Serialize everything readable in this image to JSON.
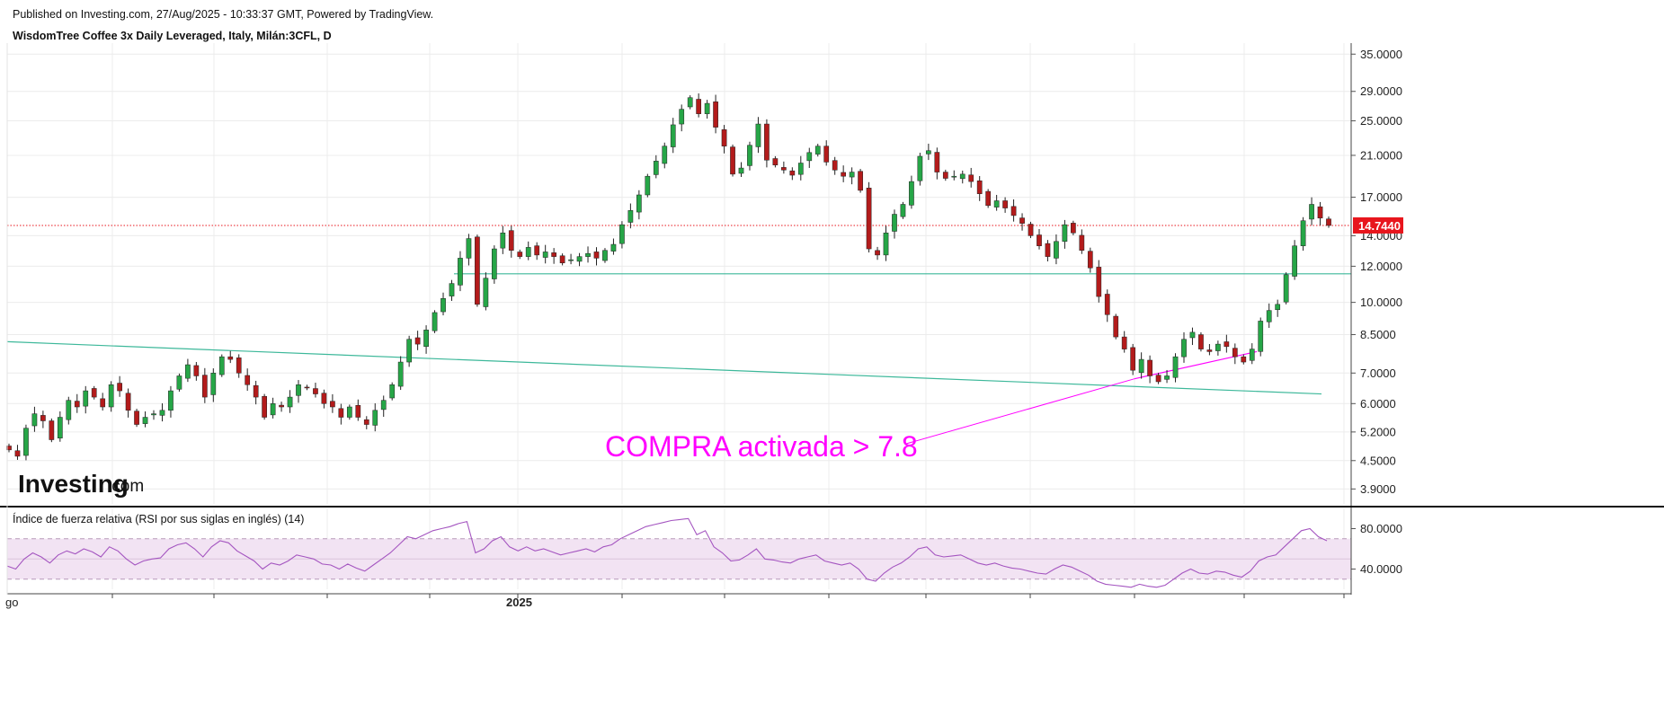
{
  "header": {
    "published": "Published on Investing.com, 27/Aug/2025 - 10:33:37 GMT, Powered by TradingView.",
    "symbol": "WisdomTree Coffee 3x Daily Leveraged, Italy, Milán:3CFL, D"
  },
  "logo": {
    "main": "Investing",
    "suffix": ".com"
  },
  "annotation": {
    "text": "COMPRA activada > 7.8"
  },
  "rsi": {
    "title": "Índice de fuerza relativa (RSI por sus siglas en inglés) (14)",
    "tick_labels": [
      "80.0000",
      "40.0000"
    ]
  },
  "x_axis_labels": [
    "go",
    "2025"
  ],
  "colors": {
    "up": "#26a647",
    "down": "#b31b1b",
    "rsi": "#a455c0",
    "rsi_band": "#f2e3f3",
    "trendline": "#3db89a",
    "annotation": "#ff00ff",
    "last_price": "#e8161d"
  },
  "chart_data": {
    "type": "candlestick",
    "title": "WisdomTree Coffee 3x Daily Leveraged, Italy, Milán:3CFL, D",
    "scale": "log",
    "ylim": [
      3.6,
      37
    ],
    "y_tick_labels": [
      "35.0000",
      "29.0000",
      "25.0000",
      "21.0000",
      "17.0000",
      "14.0000",
      "12.0000",
      "10.0000",
      "8.5000",
      "7.0000",
      "6.0000",
      "5.2000",
      "4.5000",
      "3.9000"
    ],
    "last_price": {
      "value": 14.744,
      "label": "14.7440"
    },
    "closes": [
      4.75,
      4.6,
      5.3,
      5.7,
      5.5,
      5.0,
      5.6,
      6.1,
      5.9,
      6.4,
      6.2,
      5.9,
      6.6,
      6.4,
      5.8,
      5.4,
      5.6,
      5.7,
      5.8,
      6.4,
      6.9,
      7.3,
      6.9,
      6.2,
      7.0,
      7.6,
      7.5,
      7.0,
      6.6,
      6.2,
      5.6,
      6.0,
      5.9,
      6.2,
      6.6,
      6.5,
      6.3,
      6.0,
      5.9,
      5.6,
      5.9,
      5.6,
      5.4,
      5.8,
      6.1,
      6.6,
      7.4,
      8.3,
      8.1,
      8.7,
      9.5,
      10.2,
      11.0,
      12.5,
      13.8,
      9.9,
      11.3,
      13.1,
      14.2,
      13.0,
      12.6,
      13.2,
      12.7,
      12.9,
      12.6,
      12.2,
      12.4,
      12.6,
      12.8,
      12.5,
      13.0,
      13.4,
      14.8,
      15.9,
      17.2,
      18.9,
      20.4,
      22.0,
      24.5,
      26.5,
      28.1,
      25.9,
      27.3,
      24.2,
      22.0,
      19.1,
      19.7,
      22.1,
      24.6,
      20.5,
      20.0,
      19.5,
      19.0,
      20.2,
      21.3,
      22.0,
      20.3,
      19.5,
      18.9,
      19.3,
      17.6,
      13.1,
      12.7,
      14.2,
      15.6,
      16.4,
      18.4,
      20.9,
      21.5,
      19.3,
      18.7,
      18.9,
      19.1,
      18.4,
      17.3,
      16.3,
      16.7,
      16.1,
      15.5,
      14.9,
      14.0,
      13.3,
      12.6,
      13.6,
      14.8,
      14.2,
      13.0,
      11.9,
      10.3,
      9.4,
      8.4,
      7.9,
      7.1,
      7.5,
      6.9,
      6.7,
      6.9,
      7.6,
      8.3,
      8.6,
      7.9,
      7.8,
      8.1,
      8.0,
      7.6,
      7.4,
      7.9,
      9.1,
      9.6,
      9.9,
      11.5,
      13.3,
      15.1,
      16.4,
      15.3,
      14.744
    ],
    "support_lines": [
      {
        "name": "horizontal support",
        "value": 11.55
      },
      {
        "name": "descending trendline",
        "from": 8.2,
        "to": 6.3
      },
      {
        "name": "activation line",
        "from": 6.8,
        "to": 7.8
      }
    ],
    "rsi_values": [
      43,
      40,
      50,
      56,
      52,
      46,
      54,
      58,
      55,
      60,
      57,
      52,
      62,
      58,
      50,
      44,
      48,
      50,
      51,
      60,
      64,
      66,
      60,
      52,
      62,
      68,
      66,
      58,
      53,
      48,
      40,
      46,
      44,
      48,
      54,
      52,
      50,
      45,
      44,
      40,
      45,
      41,
      38,
      44,
      50,
      56,
      64,
      72,
      70,
      74,
      78,
      80,
      82,
      85,
      87,
      56,
      60,
      68,
      72,
      62,
      58,
      62,
      58,
      60,
      57,
      54,
      56,
      58,
      60,
      57,
      62,
      64,
      70,
      74,
      78,
      82,
      84,
      86,
      88,
      89,
      90,
      74,
      78,
      62,
      56,
      48,
      49,
      54,
      60,
      50,
      49,
      47,
      46,
      50,
      52,
      54,
      48,
      46,
      44,
      46,
      40,
      30,
      28,
      36,
      42,
      46,
      52,
      60,
      62,
      54,
      52,
      53,
      54,
      50,
      46,
      44,
      46,
      43,
      41,
      40,
      38,
      36,
      35,
      40,
      44,
      42,
      38,
      34,
      28,
      25,
      24,
      23,
      22,
      25,
      23,
      22,
      24,
      30,
      36,
      40,
      36,
      35,
      38,
      37,
      34,
      32,
      38,
      48,
      52,
      54,
      62,
      70,
      78,
      80,
      72,
      68
    ]
  }
}
